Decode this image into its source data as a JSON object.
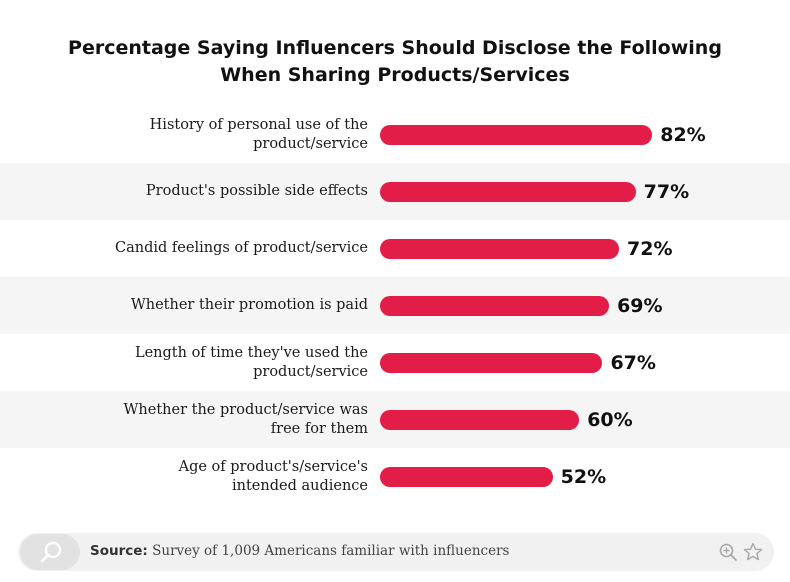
{
  "chart_data": {
    "type": "bar",
    "orientation": "horizontal",
    "title": "Percentage Saying Influencers Should Disclose the Following When Sharing Products/Services",
    "title_lines": [
      "Percentage Saying Influencers Should Disclose the Following",
      "When Sharing Products/Services"
    ],
    "categories": [
      [
        "History of personal use of the",
        "product/service"
      ],
      [
        "Product's possible side effects"
      ],
      [
        "Candid feelings of product/service"
      ],
      [
        "Whether their promotion is paid"
      ],
      [
        "Length of time they've used the",
        "product/service"
      ],
      [
        "Whether the product/service was",
        "free for them"
      ],
      [
        "Age of product's/service's",
        "intended audience"
      ]
    ],
    "values": [
      82,
      77,
      72,
      69,
      67,
      60,
      52
    ],
    "value_labels": [
      "82%",
      "77%",
      "72%",
      "69%",
      "67%",
      "60%",
      "52%"
    ],
    "unit": "%",
    "xlim": [
      0,
      100
    ],
    "grid": false,
    "legend": "none",
    "bar_color": "#e11d48"
  },
  "footer": {
    "source_label": "Source:",
    "source_text": "Survey of 1,009 Americans familiar with influencers",
    "icons": [
      "search-icon",
      "zoom-in-icon",
      "star-icon"
    ]
  }
}
